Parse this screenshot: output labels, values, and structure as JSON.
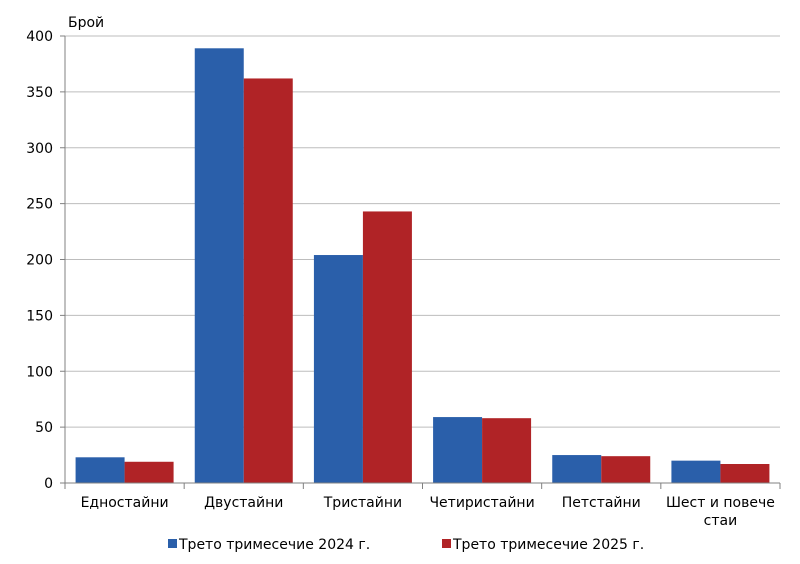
{
  "chart_data": {
    "type": "bar",
    "ylabel": "Брой",
    "ylim": [
      0,
      400
    ],
    "yticks": [
      0,
      50,
      100,
      150,
      200,
      250,
      300,
      350,
      400
    ],
    "grid": true,
    "legend_position": "bottom",
    "categories": [
      [
        "Едностайни"
      ],
      [
        "Двустайни"
      ],
      [
        "Тристайни"
      ],
      [
        "Четиристайни"
      ],
      [
        "Петстайни"
      ],
      [
        "Шест и повече",
        "стаи"
      ]
    ],
    "series": [
      {
        "name": "Трето тримесечие 2024 г.",
        "color": "#2a5faa",
        "values": [
          23,
          389,
          204,
          59,
          25,
          20
        ]
      },
      {
        "name": "Трето тримесечие 2025 г.",
        "color": "#b02326",
        "values": [
          19,
          362,
          243,
          58,
          24,
          17
        ]
      }
    ]
  }
}
